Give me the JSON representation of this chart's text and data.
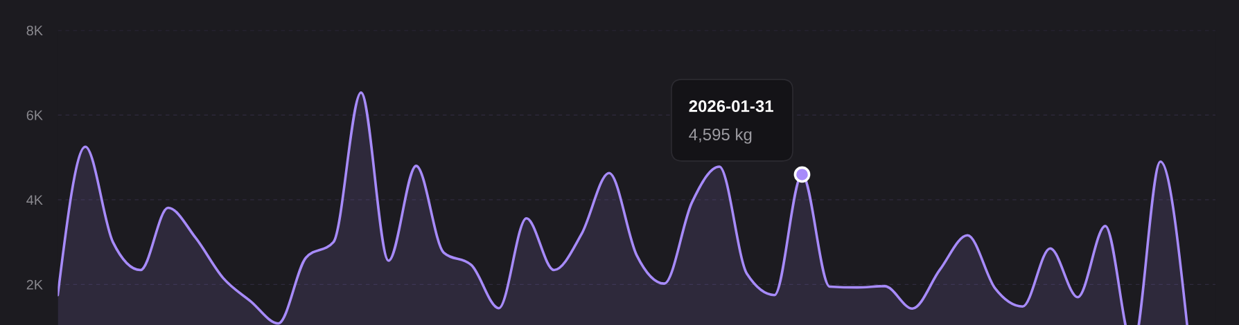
{
  "chart_data": {
    "type": "area",
    "categories": [
      null,
      null,
      null,
      null,
      null,
      null,
      null,
      null,
      null,
      null,
      null,
      null,
      null,
      null,
      null,
      null,
      null,
      null,
      null,
      null,
      null,
      null,
      null,
      null,
      null,
      null,
      null,
      null,
      null,
      null,
      null,
      null,
      null,
      null,
      null,
      null,
      null,
      null,
      null,
      null,
      null,
      null
    ],
    "series": [
      {
        "color": "#a78bfa",
        "values": [
          1750,
          5250,
          3000,
          2340,
          3810,
          3100,
          2150,
          1600,
          1080,
          2630,
          3000,
          6530,
          2560,
          4800,
          2750,
          2460,
          1440,
          3560,
          2340,
          3190,
          4630,
          2690,
          2020,
          3930,
          4780,
          2250,
          1750,
          4595,
          1950,
          1930,
          1960,
          1430,
          2350,
          3160,
          1910,
          1480,
          2850,
          1700,
          3380,
          520,
          4900,
          850
        ]
      },
      {
        "type": "scatter",
        "color": "#a78bfa",
        "marker": "circle",
        "values": [
          null,
          null,
          null,
          null,
          null,
          null,
          null,
          null,
          null,
          null,
          null,
          null,
          null,
          null,
          null,
          null,
          null,
          null,
          null,
          null,
          null,
          null,
          null,
          null,
          null,
          null,
          null,
          4595,
          null,
          null,
          null,
          null,
          null,
          null,
          null,
          null,
          null,
          null,
          null,
          null,
          null,
          null
        ]
      }
    ],
    "ylim": [
      0,
      8000
    ],
    "yticks": [
      {
        "value": 2000,
        "label": "2K"
      },
      {
        "value": 4000,
        "label": "4K"
      },
      {
        "value": 6000,
        "label": "6K"
      },
      {
        "value": 8000,
        "label": "8K"
      }
    ],
    "grid": "y",
    "annotations": [
      "2026-01-31",
      "4,595 kg"
    ]
  }
}
